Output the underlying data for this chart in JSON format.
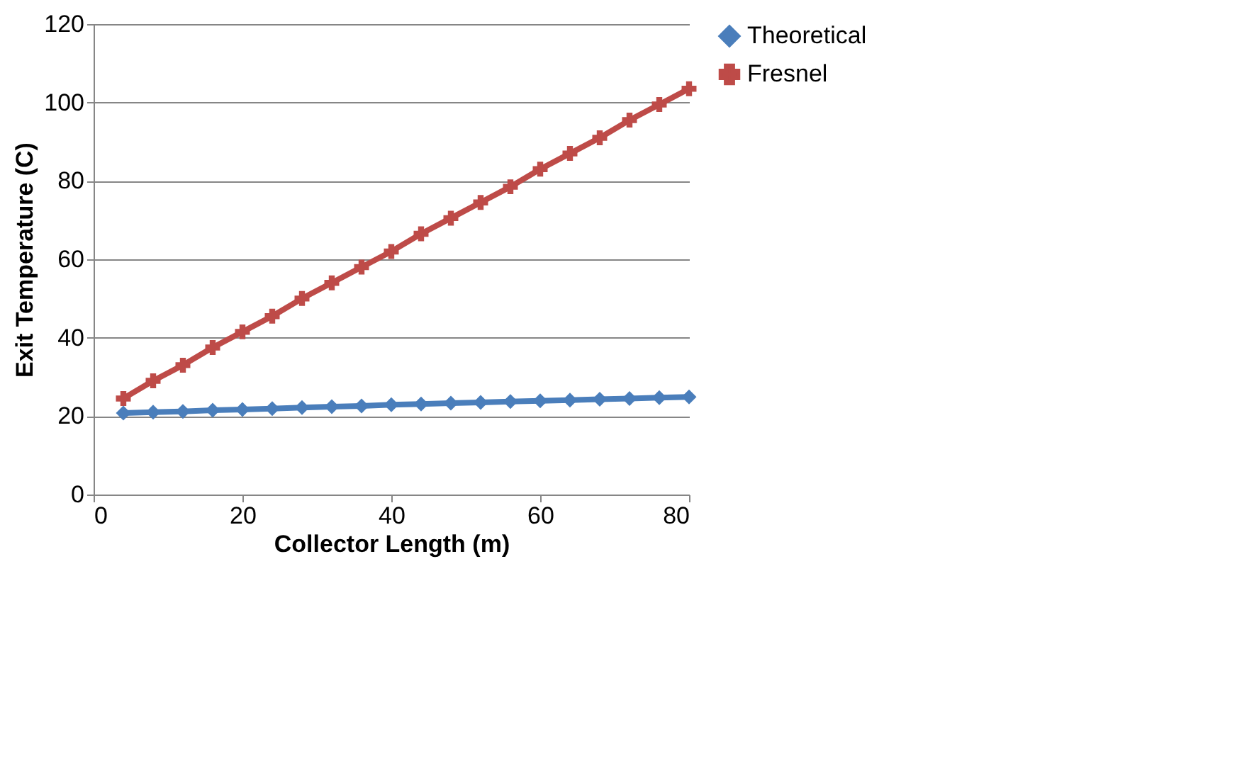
{
  "chart_data": {
    "type": "line",
    "xlabel": "Collector Length (m)",
    "ylabel": "Exit Temperature (C)",
    "x": [
      4,
      8,
      12,
      16,
      20,
      24,
      28,
      32,
      36,
      40,
      44,
      48,
      52,
      56,
      60,
      64,
      68,
      72,
      76,
      80
    ],
    "series": [
      {
        "name": "Theoretical",
        "color": "#4a7ebb",
        "marker": "diamond",
        "values": [
          20.8,
          21,
          21.2,
          21.5,
          21.7,
          21.9,
          22.2,
          22.4,
          22.6,
          22.9,
          23.1,
          23.3,
          23.5,
          23.7,
          23.9,
          24.1,
          24.3,
          24.5,
          24.7,
          24.9
        ]
      },
      {
        "name": "Fresnel",
        "color": "#be4b48",
        "marker": "cross",
        "values": [
          24.5,
          29,
          33,
          37.5,
          41.5,
          45.5,
          50,
          54,
          58,
          62,
          66.5,
          70.5,
          74.5,
          78.5,
          83,
          87,
          91,
          95.5,
          99.5,
          103.5
        ]
      }
    ],
    "xlim": [
      0,
      80
    ],
    "xticks": [
      0,
      20,
      40,
      60,
      80
    ],
    "ylim": [
      0,
      120
    ],
    "yticks": [
      0,
      20,
      40,
      60,
      80,
      100,
      120
    ],
    "grid": "y",
    "legend": "right",
    "line_style": "solid"
  }
}
